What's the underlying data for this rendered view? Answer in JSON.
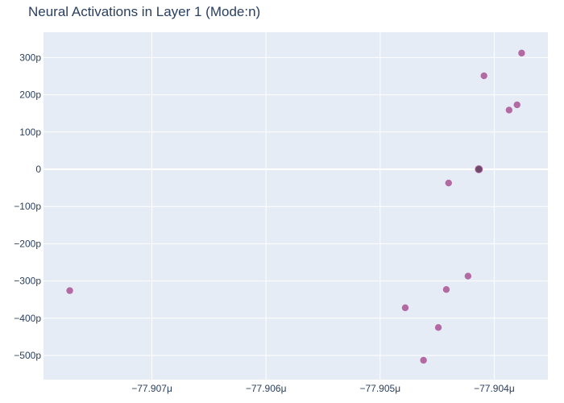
{
  "chart_data": {
    "type": "scatter",
    "title": "Neural Activations in Layer 1 (Mode:n)",
    "xlabel": "",
    "ylabel": "",
    "x_unit_suffix": "μ",
    "y_unit_suffix": "p",
    "xlim": [
      -77.90795,
      -77.90353
    ],
    "ylim": [
      -565,
      368
    ],
    "x_ticks": [
      -77.907,
      -77.906,
      -77.905,
      -77.904
    ],
    "x_tick_labels": [
      "−77.907μ",
      "−77.906μ",
      "−77.905μ",
      "−77.904μ"
    ],
    "y_ticks": [
      300,
      200,
      100,
      0,
      -100,
      -200,
      -300,
      -400,
      -500
    ],
    "y_tick_labels": [
      "300p",
      "200p",
      "100p",
      "0",
      "−100p",
      "−200p",
      "−300p",
      "−400p",
      "−500p"
    ],
    "grid": true,
    "colors": {
      "plot_background": "#e5ecf6",
      "grid": "#ffffff",
      "marker": "#b36aa2",
      "marker_dense": "#6e4a6a",
      "text": "#2a3f5f"
    },
    "series": [
      {
        "points": [
          {
            "x": -77.90772,
            "y": -326
          },
          {
            "x": -77.90478,
            "y": -372
          },
          {
            "x": -77.90462,
            "y": -513
          },
          {
            "x": -77.90449,
            "y": -425
          },
          {
            "x": -77.90442,
            "y": -323
          },
          {
            "x": -77.9044,
            "y": -37
          },
          {
            "x": -77.90423,
            "y": -287
          },
          {
            "x": -77.90409,
            "y": 251
          },
          {
            "x": -77.90387,
            "y": 159
          },
          {
            "x": -77.9038,
            "y": 173
          },
          {
            "x": -77.90376,
            "y": 312
          }
        ],
        "dense_cluster": {
          "x": -77.904135,
          "y": 0
        }
      }
    ]
  }
}
